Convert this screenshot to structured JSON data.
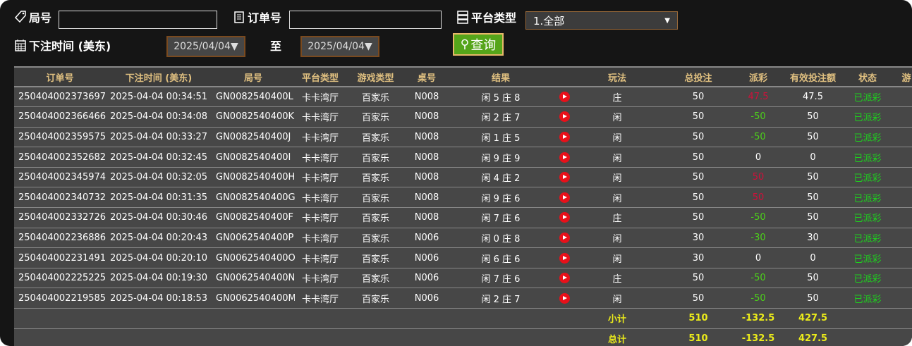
{
  "filters": {
    "round_label": "局号",
    "round_value": "",
    "order_label": "订单号",
    "order_value": "",
    "platform_label": "平台类型",
    "platform_selected": "1.全部",
    "time_label": "下注时间 (美东)",
    "date_from": "2025/04/04▼",
    "to_label": "至",
    "date_to": "2025/04/04▼",
    "query_button": "查询"
  },
  "table": {
    "headers": [
      "订单号",
      "下注时间 (美东)",
      "局号",
      "平台类型",
      "游戏类型",
      "桌号",
      "结果",
      "",
      "玩法",
      "总投注",
      "派彩",
      "有效投注额",
      "状态",
      "游"
    ],
    "rows": [
      [
        "250404002373697",
        "2025-04-04 00:34:51",
        "GN0082540400L",
        "卡卡湾厅",
        "百家乐",
        "N008",
        "闲 5 庄 8",
        "庄",
        "50",
        "47.5",
        "47.5",
        "已派彩"
      ],
      [
        "250404002366466",
        "2025-04-04 00:34:08",
        "GN0082540400K",
        "卡卡湾厅",
        "百家乐",
        "N008",
        "闲 2 庄 7",
        "闲",
        "50",
        "-50",
        "50",
        "已派彩"
      ],
      [
        "250404002359575",
        "2025-04-04 00:33:27",
        "GN0082540400J",
        "卡卡湾厅",
        "百家乐",
        "N008",
        "闲 1 庄 5",
        "闲",
        "50",
        "-50",
        "50",
        "已派彩"
      ],
      [
        "250404002352682",
        "2025-04-04 00:32:45",
        "GN0082540400I",
        "卡卡湾厅",
        "百家乐",
        "N008",
        "闲 9 庄 9",
        "闲",
        "50",
        "0",
        "0",
        "已派彩"
      ],
      [
        "250404002345974",
        "2025-04-04 00:32:05",
        "GN0082540400H",
        "卡卡湾厅",
        "百家乐",
        "N008",
        "闲 4 庄 2",
        "闲",
        "50",
        "50",
        "50",
        "已派彩"
      ],
      [
        "250404002340732",
        "2025-04-04 00:31:35",
        "GN0082540400G",
        "卡卡湾厅",
        "百家乐",
        "N008",
        "闲 9 庄 6",
        "闲",
        "50",
        "50",
        "50",
        "已派彩"
      ],
      [
        "250404002332726",
        "2025-04-04 00:30:46",
        "GN0082540400F",
        "卡卡湾厅",
        "百家乐",
        "N008",
        "闲 7 庄 6",
        "庄",
        "50",
        "-50",
        "50",
        "已派彩"
      ],
      [
        "250404002236886",
        "2025-04-04 00:20:43",
        "GN0062540400P",
        "卡卡湾厅",
        "百家乐",
        "N006",
        "闲 0 庄 8",
        "闲",
        "30",
        "-30",
        "30",
        "已派彩"
      ],
      [
        "250404002231491",
        "2025-04-04 00:20:10",
        "GN0062540400O",
        "卡卡湾厅",
        "百家乐",
        "N006",
        "闲 6 庄 6",
        "闲",
        "30",
        "0",
        "0",
        "已派彩"
      ],
      [
        "250404002225225",
        "2025-04-04 00:19:30",
        "GN0062540400N",
        "卡卡湾厅",
        "百家乐",
        "N006",
        "闲 7 庄 6",
        "庄",
        "50",
        "-50",
        "50",
        "已派彩"
      ],
      [
        "250404002219585",
        "2025-04-04 00:18:53",
        "GN0062540400M",
        "卡卡湾厅",
        "百家乐",
        "N006",
        "闲 2 庄 7",
        "闲",
        "50",
        "-50",
        "50",
        "已派彩"
      ]
    ],
    "subtotal": {
      "label": "小计",
      "total_bet": "510",
      "payout": "-132.5",
      "valid_bet": "427.5"
    },
    "total": {
      "label": "总计",
      "total_bet": "510",
      "payout": "-132.5",
      "valid_bet": "427.5"
    }
  },
  "colors": {
    "payout_negative": "#4cd11a",
    "payout_positive": "#d0103a",
    "status": "#1ed11e",
    "summary": "#ecec1a",
    "header_text": "#e0c080",
    "query_button": "#55a51a"
  }
}
